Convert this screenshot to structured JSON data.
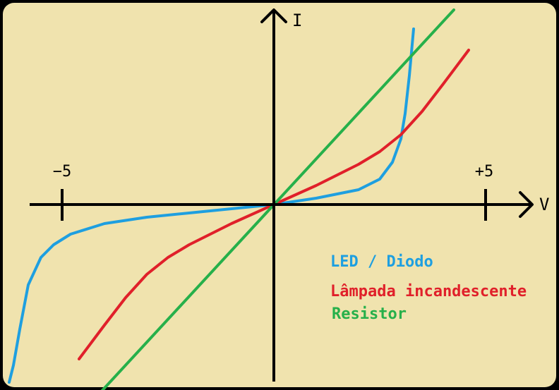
{
  "chart_data": {
    "type": "line",
    "xlabel": "V",
    "ylabel": "I",
    "xlim": [
      -6.6,
      6.0
    ],
    "ylim": [
      -4.2,
      4.5
    ],
    "x_ticks": [
      {
        "value": -5,
        "label": "−5"
      },
      {
        "value": 5,
        "label": "+5"
      }
    ],
    "grid": false,
    "legend_position": "bottom-right",
    "colors": {
      "background": "#f0e3ae",
      "axis": "#000000",
      "led": "#1e9fe0",
      "lamp": "#e0202a",
      "resistor": "#26b04a"
    },
    "series": [
      {
        "name": "LED / Diodo",
        "key": "led",
        "x": [
          -6.25,
          -6.15,
          -6.0,
          -5.8,
          -5.5,
          -5.2,
          -4.8,
          -4.0,
          -3.0,
          -2.0,
          -1.0,
          0.0,
          1.0,
          2.0,
          2.5,
          2.8,
          3.0,
          3.1,
          3.2,
          3.3
        ],
        "y": [
          -4.2,
          -3.8,
          -2.95,
          -1.9,
          -1.25,
          -0.95,
          -0.7,
          -0.45,
          -0.3,
          -0.2,
          -0.1,
          0.0,
          0.15,
          0.35,
          0.6,
          1.0,
          1.55,
          2.15,
          3.05,
          4.15
        ]
      },
      {
        "name": "Lâmpada incandescente",
        "key": "lamp",
        "x": [
          -4.6,
          -4.0,
          -3.5,
          -3.0,
          -2.5,
          -2.0,
          -1.0,
          0.0,
          1.0,
          2.0,
          2.5,
          3.0,
          3.5,
          4.0,
          4.6
        ],
        "y": [
          -3.65,
          -2.85,
          -2.2,
          -1.65,
          -1.25,
          -0.95,
          -0.45,
          0.0,
          0.45,
          0.95,
          1.25,
          1.65,
          2.2,
          2.85,
          3.65
        ]
      },
      {
        "name": "Resistor",
        "key": "resistor",
        "x": [
          -4.15,
          4.25
        ],
        "y": [
          -4.5,
          4.6
        ]
      }
    ]
  }
}
